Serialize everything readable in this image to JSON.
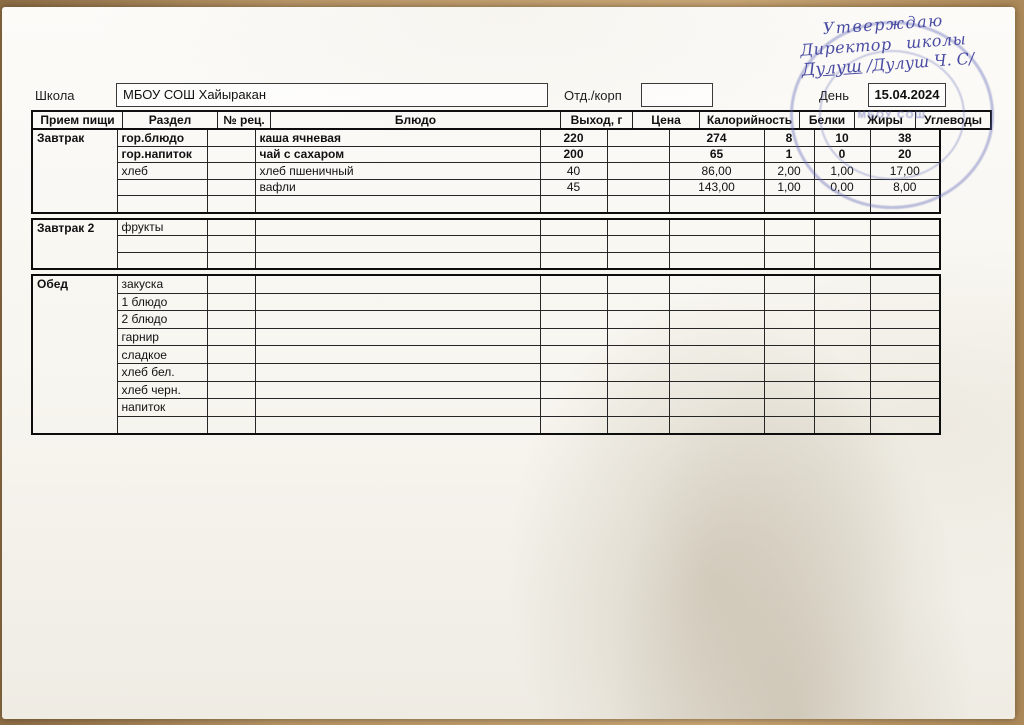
{
  "form": {
    "school_label": "Школа",
    "school_value": "МБОУ СОШ Хайыракан",
    "dept_label": "Отд./корп",
    "dept_value": "",
    "day_label": "День",
    "day_value": "15.04.2024"
  },
  "approval": {
    "line1": "Утверждаю",
    "line2": "Директор школы",
    "signature": "Дулуш",
    "line3": "/Дулуш Ч. С/",
    "stamp_text": "МБОУ СОШ",
    "ink_color": "#3c3e9d",
    "stamp_color": "#646cb9"
  },
  "table": {
    "headers": [
      "Прием пищи",
      "Раздел",
      "№ рец.",
      "Блюдо",
      "Выход, г",
      "Цена",
      "Калорийность",
      "Белки",
      "Жиры",
      "Углеводы"
    ],
    "columns_key": [
      "раздел",
      "№ рец.",
      "блюдо",
      "выход г",
      "цена",
      "калорийность",
      "белки",
      "жиры",
      "углеводы"
    ],
    "sections": [
      {
        "meal": "Завтрак",
        "emphasized_rows": [
          0,
          1
        ],
        "rows": [
          [
            "гор.блюдо",
            "",
            "каша ячневая",
            "220",
            "",
            "274",
            "8",
            "10",
            "38"
          ],
          [
            "гор.напиток",
            "",
            "чай с сахаром",
            "200",
            "",
            "65",
            "1",
            "0",
            "20"
          ],
          [
            "хлеб",
            "",
            "хлеб пшеничный",
            "40",
            "",
            "86,00",
            "2,00",
            "1,00",
            "17,00"
          ],
          [
            "",
            "",
            "вафли",
            "45",
            "",
            "143,00",
            "1,00",
            "0,00",
            "8,00"
          ],
          [
            "",
            "",
            "",
            "",
            "",
            "",
            "",
            "",
            ""
          ]
        ]
      },
      {
        "meal": "Завтрак 2",
        "emphasized_rows": [],
        "rows": [
          [
            "фрукты",
            "",
            "",
            "",
            "",
            "",
            "",
            "",
            ""
          ],
          [
            "",
            "",
            "",
            "",
            "",
            "",
            "",
            "",
            ""
          ],
          [
            "",
            "",
            "",
            "",
            "",
            "",
            "",
            "",
            ""
          ]
        ]
      },
      {
        "meal": "Обед",
        "tall": true,
        "emphasized_rows": [],
        "rows": [
          [
            "закуска",
            "",
            "",
            "",
            "",
            "",
            "",
            "",
            ""
          ],
          [
            "1 блюдо",
            "",
            "",
            "",
            "",
            "",
            "",
            "",
            ""
          ],
          [
            "2 блюдо",
            "",
            "",
            "",
            "",
            "",
            "",
            "",
            ""
          ],
          [
            "гарнир",
            "",
            "",
            "",
            "",
            "",
            "",
            "",
            ""
          ],
          [
            "сладкое",
            "",
            "",
            "",
            "",
            "",
            "",
            "",
            ""
          ],
          [
            "хлеб бел.",
            "",
            "",
            "",
            "",
            "",
            "",
            "",
            ""
          ],
          [
            "хлеб черн.",
            "",
            "",
            "",
            "",
            "",
            "",
            "",
            ""
          ],
          [
            "напиток",
            "",
            "",
            "",
            "",
            "",
            "",
            "",
            ""
          ],
          [
            "",
            "",
            "",
            "",
            "",
            "",
            "",
            "",
            ""
          ]
        ]
      }
    ]
  }
}
